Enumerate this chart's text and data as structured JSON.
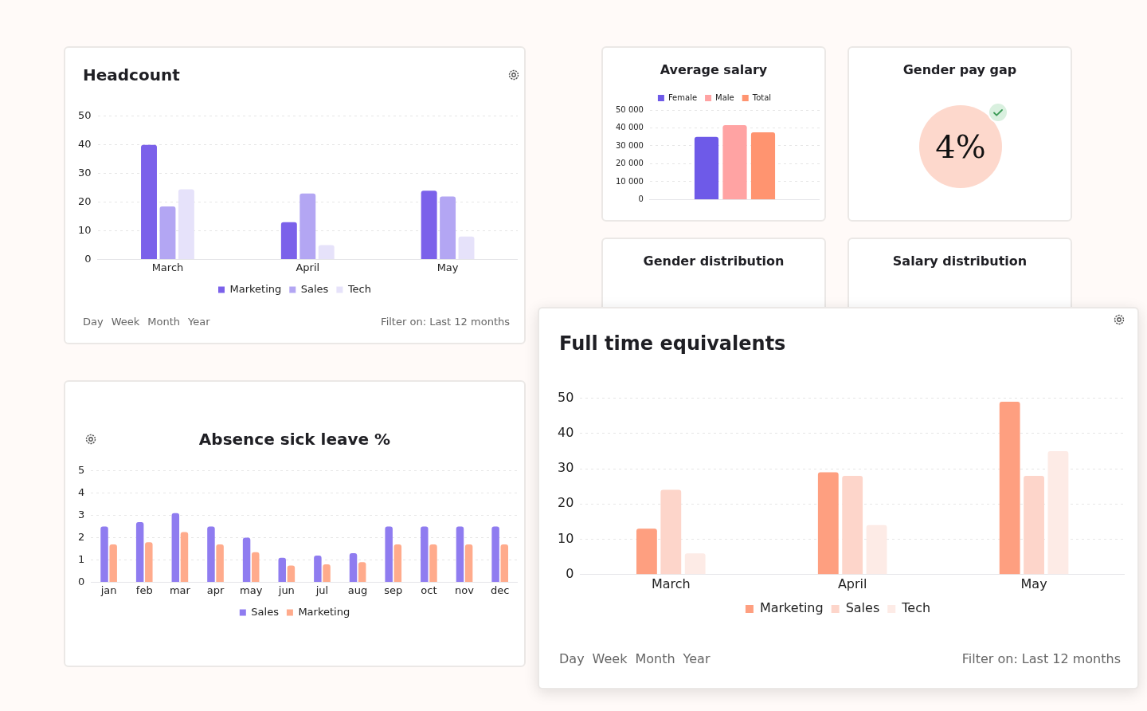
{
  "chart_data": [
    {
      "type": "bar",
      "title": "Headcount",
      "categories": [
        "March",
        "April",
        "May"
      ],
      "series": [
        {
          "name": "Marketing",
          "color": "#7b61ea",
          "values": [
            40,
            13,
            24
          ]
        },
        {
          "name": "Sales",
          "color": "#b3a6f3",
          "values": [
            18.5,
            23,
            22
          ]
        },
        {
          "name": "Tech",
          "color": "#e6e2fa",
          "values": [
            24.5,
            5,
            8
          ]
        }
      ],
      "ylim": [
        0,
        50
      ],
      "yticks": [
        0,
        10,
        20,
        30,
        40,
        50
      ],
      "grid": "y",
      "legend": "bottom",
      "annotations": [
        "Day",
        "Week",
        "Month",
        "Year",
        "Filter on: Last 12 months"
      ]
    },
    {
      "type": "bar",
      "title": "Average salary",
      "categories": [
        null
      ],
      "series": [
        {
          "name": "Female",
          "color": "#6e5ae8",
          "values": [
            35000
          ]
        },
        {
          "name": "Male",
          "color": "#ffa3a3",
          "values": [
            41500
          ]
        },
        {
          "name": "Total",
          "color": "#ff9470",
          "values": [
            37500
          ]
        }
      ],
      "ylim": [
        0,
        50000
      ],
      "yticks": [
        0,
        {
          "value": 10000,
          "label": "10 000"
        },
        {
          "value": 20000,
          "label": "20 000"
        },
        {
          "value": 30000,
          "label": "30 000"
        },
        {
          "value": 40000,
          "label": "40 000"
        },
        {
          "value": 50000,
          "label": "50 000"
        }
      ],
      "grid": "y",
      "legend": "top"
    },
    {
      "type": "other",
      "title": "Gender pay gap",
      "annotations": [
        "4%"
      ]
    },
    {
      "type": "other",
      "title": "Gender distribution"
    },
    {
      "type": "other",
      "title": "Salary distribution"
    },
    {
      "type": "bar",
      "title": "Absence sick leave %",
      "categories": [
        "jan",
        "feb",
        "mar",
        "apr",
        "may",
        "jun",
        "jul",
        "aug",
        "sep",
        "oct",
        "nov",
        "dec"
      ],
      "series": [
        {
          "name": "Sales",
          "color": "#8f7cf0",
          "values": [
            2.5,
            2.7,
            3.1,
            2.5,
            2,
            1.1,
            1.2,
            1.3,
            2.5,
            2.5,
            2.5,
            2.5
          ]
        },
        {
          "name": "Marketing",
          "color": "#ffab8c",
          "values": [
            1.7,
            1.8,
            2.25,
            1.7,
            1.35,
            0.75,
            0.8,
            0.9,
            1.7,
            1.7,
            1.7,
            1.7
          ]
        }
      ],
      "ylim": [
        0,
        5
      ],
      "yticks": [
        0,
        1,
        2,
        3,
        4,
        5
      ],
      "grid": "y",
      "legend": "bottom"
    },
    {
      "type": "bar",
      "title": "Full time equivalents",
      "categories": [
        "March",
        "April",
        "May"
      ],
      "series": [
        {
          "name": "Marketing",
          "color": "#fe9f80",
          "values": [
            13,
            29,
            49
          ]
        },
        {
          "name": "Sales",
          "color": "#fdd5ca",
          "values": [
            24,
            28,
            28
          ]
        },
        {
          "name": "Tech",
          "color": "#fdebe6",
          "values": [
            6,
            14,
            35
          ]
        }
      ],
      "ylim": [
        0,
        50
      ],
      "yticks": [
        0,
        10,
        20,
        30,
        40,
        50
      ],
      "grid": "y",
      "legend": "bottom",
      "annotations": [
        "Day",
        "Week",
        "Month",
        "Year",
        "Filter on: Last 12 months"
      ]
    }
  ]
}
